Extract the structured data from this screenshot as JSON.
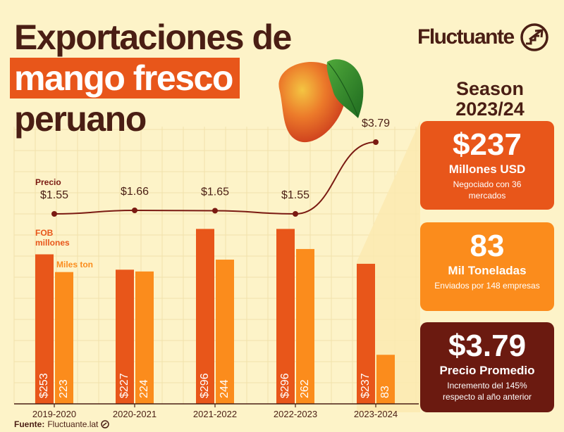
{
  "title": {
    "line1": "Exportaciones de",
    "line2": "mango fresco",
    "line3": "peruano"
  },
  "brand": {
    "name": "Fluctuante",
    "icon": "fluctuante-logo-icon"
  },
  "season": {
    "label": "Season",
    "years": "2023/24"
  },
  "cards": [
    {
      "value": "$237",
      "label": "Millones USD",
      "sub": "Negociado con 36 mercados",
      "color": "#e8561a"
    },
    {
      "value": "83",
      "label": "Mil Toneladas",
      "sub": "Enviados por 148 empresas",
      "color": "#fb8c1c"
    },
    {
      "value": "$3.79",
      "label": "Precio Promedio",
      "sub": "Incremento del 145% respecto al año anterior",
      "color": "#6b1a10"
    }
  ],
  "chart_data": {
    "type": "bar",
    "categories": [
      "2019-2020",
      "2020-2021",
      "2021-2022",
      "2022-2023",
      "2023-2024"
    ],
    "series": [
      {
        "name": "FOB millones",
        "values": [
          253,
          227,
          296,
          296,
          237
        ],
        "labels": [
          "$253",
          "$227",
          "$296",
          "$296",
          "$237"
        ],
        "color": "#e8561a"
      },
      {
        "name": "Miles ton",
        "values": [
          223,
          224,
          244,
          262,
          83
        ],
        "labels": [
          "223",
          "224",
          "244",
          "262",
          "83"
        ],
        "color": "#fb8c1c"
      }
    ],
    "price_line": {
      "name": "Precio",
      "values": [
        1.55,
        1.66,
        1.65,
        1.55,
        3.79
      ],
      "labels": [
        "$1.55",
        "$1.66",
        "$1.65",
        "$1.55",
        "$3.79"
      ],
      "color": "#7a1a12"
    },
    "ylim": [
      0,
      300
    ],
    "grid": true
  },
  "source": {
    "label": "Fuente:",
    "value": "Fluctuante.lat"
  }
}
